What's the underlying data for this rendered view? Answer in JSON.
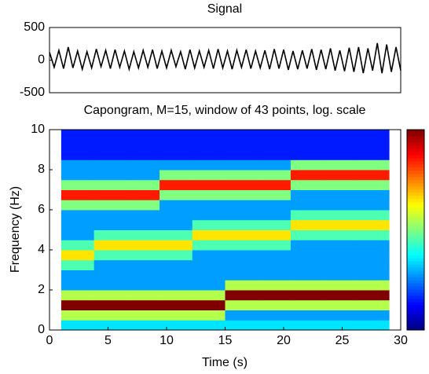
{
  "chart_data": [
    {
      "type": "line",
      "title": "Signal",
      "color": "#000000",
      "x": [
        0,
        0.4,
        0.8,
        1.2,
        1.6,
        2,
        2.4,
        2.8,
        3.2,
        3.6,
        4,
        4.4,
        4.8,
        5.2,
        5.6,
        6,
        6.4,
        6.8,
        7.2,
        7.6,
        8,
        8.4,
        8.8,
        9.2,
        9.6,
        10,
        10.4,
        10.8,
        11.2,
        11.6,
        12,
        12.4,
        12.8,
        13.2,
        13.6,
        14,
        14.4,
        14.8,
        15.2,
        15.6,
        16,
        16.4,
        16.8,
        17.2,
        17.6,
        18,
        18.4,
        18.8,
        19.2,
        19.6,
        20,
        20.4,
        20.8,
        21.2,
        21.6,
        22,
        22.4,
        22.8,
        23.2,
        23.6,
        24,
        24.4,
        24.8,
        25.2,
        25.6,
        26,
        26.4,
        26.8,
        27.2,
        27.6,
        28,
        28.4,
        28.8,
        29.2,
        29.6,
        30
      ],
      "values": [
        120,
        -110,
        150,
        -130,
        200,
        -120,
        140,
        -140,
        130,
        -120,
        170,
        -100,
        150,
        -130,
        160,
        -110,
        140,
        -140,
        130,
        -120,
        150,
        -110,
        160,
        -130,
        140,
        -120,
        150,
        -100,
        130,
        -140,
        160,
        -120,
        140,
        -110,
        150,
        -130,
        170,
        -120,
        140,
        -140,
        150,
        -110,
        160,
        -130,
        140,
        -120,
        150,
        -140,
        170,
        -130,
        160,
        -150,
        140,
        -140,
        150,
        -130,
        170,
        -150,
        160,
        -140,
        180,
        -160,
        150,
        -170,
        190,
        -180,
        200,
        -200,
        180,
        -160,
        260,
        -200,
        240,
        -180,
        200,
        -160
      ],
      "xlim": [
        0,
        30
      ],
      "ylim": [
        -500,
        500
      ],
      "yticks": [
        -500,
        0,
        500
      ]
    },
    {
      "type": "heatmap",
      "title": "Capongram, M=15, window of 43 points, log. scale",
      "xlabel": "Time (s)",
      "ylabel": "Frequency (Hz)",
      "xlim": [
        0,
        30
      ],
      "ylim": [
        0,
        10
      ],
      "xticks": [
        0,
        5,
        10,
        15,
        20,
        25,
        30
      ],
      "yticks": [
        0,
        2,
        4,
        6,
        8,
        10
      ],
      "colormap": "jet",
      "clim": [
        0,
        1
      ],
      "x_edges": [
        1,
        3.8,
        6.6,
        9.4,
        12.2,
        15,
        17.8,
        20.6,
        23.4,
        26.2,
        29
      ],
      "y_edges": [
        0,
        0.5,
        1,
        1.5,
        2,
        2.5,
        3,
        3.5,
        4,
        4.5,
        5,
        5.5,
        6,
        6.5,
        7,
        7.5,
        8,
        8.5,
        9,
        9.5,
        10
      ],
      "values": [
        [
          0.35,
          0.35,
          0.35,
          0.35,
          0.35,
          0.35,
          0.35,
          0.35,
          0.35,
          0.35
        ],
        [
          0.55,
          0.55,
          0.55,
          0.55,
          0.55,
          0.28,
          0.28,
          0.28,
          0.28,
          0.28
        ],
        [
          1,
          1,
          1,
          1,
          1,
          0.55,
          0.55,
          0.55,
          0.55,
          0.55
        ],
        [
          0.55,
          0.55,
          0.55,
          0.55,
          0.55,
          1,
          1,
          1,
          1,
          1
        ],
        [
          0.28,
          0.28,
          0.28,
          0.28,
          0.28,
          0.55,
          0.55,
          0.55,
          0.55,
          0.55
        ],
        [
          0.28,
          0.28,
          0.28,
          0.28,
          0.28,
          0.28,
          0.28,
          0.28,
          0.28,
          0.28
        ],
        [
          0.45,
          0.28,
          0.28,
          0.28,
          0.28,
          0.28,
          0.28,
          0.28,
          0.28,
          0.28
        ],
        [
          0.65,
          0.45,
          0.45,
          0.45,
          0.28,
          0.28,
          0.28,
          0.28,
          0.28,
          0.28
        ],
        [
          0.45,
          0.65,
          0.65,
          0.65,
          0.45,
          0.45,
          0.45,
          0.28,
          0.28,
          0.28
        ],
        [
          0.28,
          0.45,
          0.45,
          0.45,
          0.65,
          0.65,
          0.65,
          0.45,
          0.45,
          0.45
        ],
        [
          0.28,
          0.28,
          0.28,
          0.28,
          0.45,
          0.45,
          0.45,
          0.65,
          0.65,
          0.65
        ],
        [
          0.28,
          0.28,
          0.28,
          0.28,
          0.28,
          0.28,
          0.28,
          0.45,
          0.45,
          0.45
        ],
        [
          0.5,
          0.5,
          0.5,
          0.28,
          0.28,
          0.28,
          0.28,
          0.28,
          0.28,
          0.28
        ],
        [
          0.85,
          0.85,
          0.85,
          0.5,
          0.5,
          0.5,
          0.5,
          0.28,
          0.28,
          0.28
        ],
        [
          0.5,
          0.5,
          0.5,
          0.85,
          0.85,
          0.85,
          0.85,
          0.5,
          0.5,
          0.5
        ],
        [
          0.28,
          0.28,
          0.28,
          0.5,
          0.5,
          0.5,
          0.5,
          0.85,
          0.85,
          0.85
        ],
        [
          0.28,
          0.28,
          0.28,
          0.28,
          0.28,
          0.28,
          0.28,
          0.5,
          0.5,
          0.5
        ],
        [
          0.15,
          0.15,
          0.15,
          0.15,
          0.15,
          0.15,
          0.15,
          0.15,
          0.15,
          0.15
        ],
        [
          0.15,
          0.15,
          0.15,
          0.15,
          0.15,
          0.15,
          0.15,
          0.15,
          0.15,
          0.15
        ],
        [
          0.15,
          0.15,
          0.15,
          0.15,
          0.15,
          0.15,
          0.15,
          0.15,
          0.15,
          0.15
        ]
      ]
    }
  ]
}
